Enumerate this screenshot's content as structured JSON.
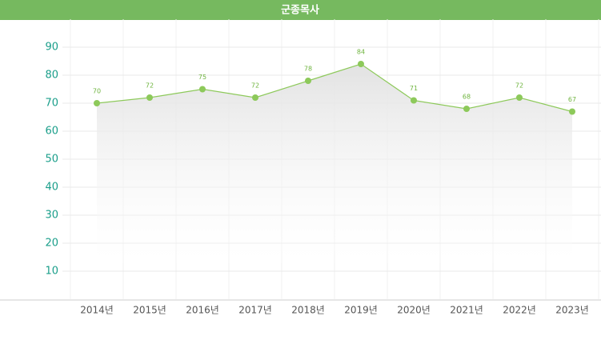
{
  "chart_data": {
    "type": "line",
    "title": "군종목사",
    "categories": [
      "2014년",
      "2015년",
      "2016년",
      "2017년",
      "2018년",
      "2019년",
      "2020년",
      "2021년",
      "2022년",
      "2023년"
    ],
    "values": [
      70,
      72,
      75,
      72,
      78,
      84,
      71,
      68,
      72,
      67
    ],
    "color": "#8dc95a",
    "ylim": [
      0,
      100
    ],
    "yticks": [
      10,
      20,
      30,
      40,
      50,
      60,
      70,
      80,
      90
    ],
    "grid": true
  }
}
